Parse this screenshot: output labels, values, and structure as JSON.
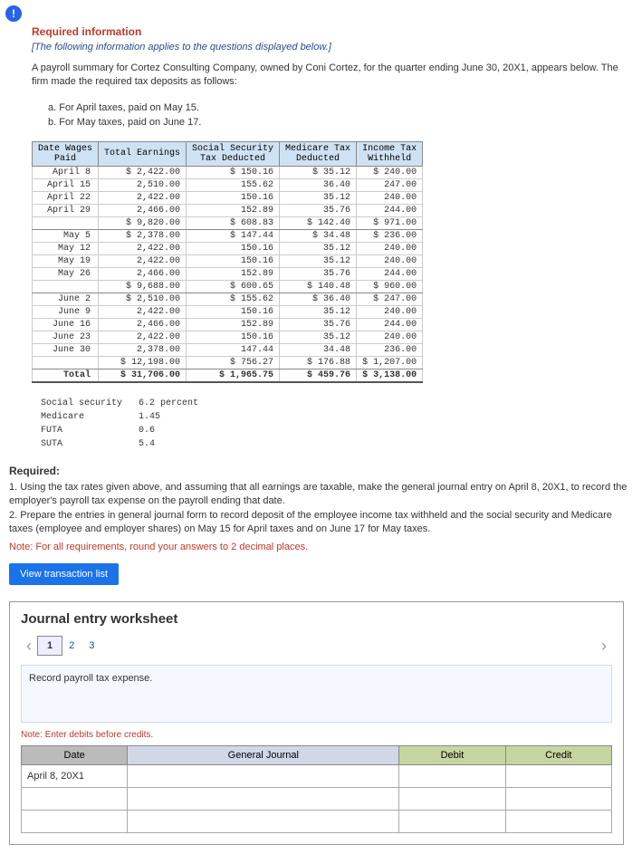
{
  "badge": "!",
  "header": {
    "title": "Required information",
    "subtitle": "[The following information applies to the questions displayed below.]",
    "intro": "A payroll summary for Cortez Consulting Company, owned by Coni Cortez, for the quarter ending June 30, 20X1, appears below. The firm made the required tax deposits as follows:",
    "listA": "a. For April taxes, paid on May 15.",
    "listB": "b. For May taxes, paid on June 17."
  },
  "table": {
    "headers": {
      "date": "Date Wages\nPaid",
      "earnings": "Total Earnings",
      "ss": "Social Security\nTax Deducted",
      "med": "Medicare Tax\nDeducted",
      "inc": "Income Tax\nWithheld"
    },
    "rows": [
      {
        "d": "April 8",
        "e": "$ 2,422.00",
        "s": "$ 150.16",
        "m": "$ 35.12",
        "i": "$ 240.00"
      },
      {
        "d": "April 15",
        "e": "2,510.00",
        "s": "155.62",
        "m": "36.40",
        "i": "247.00"
      },
      {
        "d": "April 22",
        "e": "2,422.00",
        "s": "150.16",
        "m": "35.12",
        "i": "240.00"
      },
      {
        "d": "April 29",
        "e": "2,466.00",
        "s": "152.89",
        "m": "35.76",
        "i": "244.00"
      }
    ],
    "sub1": {
      "d": "",
      "e": "$ 9,820.00",
      "s": "$ 608.83",
      "m": "$ 142.40",
      "i": "$ 971.00"
    },
    "rows2": [
      {
        "d": "May 5",
        "e": "$ 2,378.00",
        "s": "$ 147.44",
        "m": "$ 34.48",
        "i": "$ 236.00"
      },
      {
        "d": "May 12",
        "e": "2,422.00",
        "s": "150.16",
        "m": "35.12",
        "i": "240.00"
      },
      {
        "d": "May 19",
        "e": "2,422.00",
        "s": "150.16",
        "m": "35.12",
        "i": "240.00"
      },
      {
        "d": "May 26",
        "e": "2,466.00",
        "s": "152.89",
        "m": "35.76",
        "i": "244.00"
      }
    ],
    "sub2": {
      "d": "",
      "e": "$ 9,688.00",
      "s": "$ 600.65",
      "m": "$ 140.48",
      "i": "$ 960.00"
    },
    "rows3": [
      {
        "d": "June 2",
        "e": "$ 2,510.00",
        "s": "$ 155.62",
        "m": "$ 36.40",
        "i": "$ 247.00"
      },
      {
        "d": "June 9",
        "e": "2,422.00",
        "s": "150.16",
        "m": "35.12",
        "i": "240.00"
      },
      {
        "d": "June 16",
        "e": "2,466.00",
        "s": "152.89",
        "m": "35.76",
        "i": "244.00"
      },
      {
        "d": "June 23",
        "e": "2,422.00",
        "s": "150.16",
        "m": "35.12",
        "i": "240.00"
      },
      {
        "d": "June 30",
        "e": "2,378.00",
        "s": "147.44",
        "m": "34.48",
        "i": "236.00"
      }
    ],
    "sub3": {
      "d": "",
      "e": "$ 12,198.00",
      "s": "$ 756.27",
      "m": "$ 176.88",
      "i": "$ 1,207.00"
    },
    "total": {
      "d": "Total",
      "e": "$ 31,706.00",
      "s": "$ 1,965.75",
      "m": "$ 459.76",
      "i": "$ 3,138.00"
    }
  },
  "rates": {
    "ss_l": "Social security",
    "ss_v": "6.2 percent",
    "med_l": "Medicare",
    "med_v": "1.45",
    "futa_l": "FUTA",
    "futa_v": "0.6",
    "suta_l": "SUTA",
    "suta_v": "5.4"
  },
  "required": {
    "label": "Required:",
    "item1": "1. Using the tax rates given above, and assuming that all earnings are taxable, make the general journal entry on April 8, 20X1, to record the employer's payroll tax expense on the payroll ending that date.",
    "item2": "2. Prepare the entries in general journal form to record deposit of the employee income tax withheld and the social security and Medicare taxes (employee and employer shares) on May 15 for April taxes and on June 17 for May taxes.",
    "note": "Note: For all requirements, round your answers to 2 decimal places."
  },
  "viewBtn": "View transaction list",
  "journal": {
    "title": "Journal entry worksheet",
    "tabs": [
      "1",
      "2",
      "3"
    ],
    "recordText": "Record payroll tax expense.",
    "noteSmall": "Note: Enter debits before credits.",
    "headers": {
      "date": "Date",
      "gj": "General Journal",
      "debit": "Debit",
      "credit": "Credit"
    },
    "firstDate": "April 8, 20X1"
  }
}
